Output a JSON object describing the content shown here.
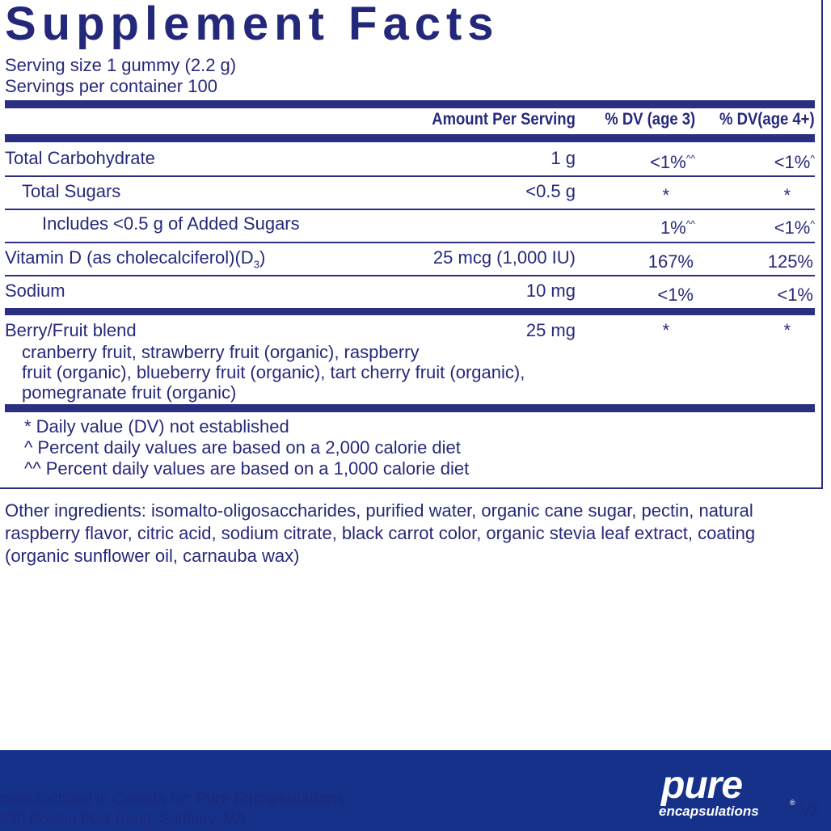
{
  "title": "Supplement Facts",
  "serving_size": "Serving size  1 gummy (2.2 g)",
  "servings_per_container": "Servings per container  100",
  "headers": {
    "amount": "Amount Per Serving",
    "dv3": "% DV (age 3)",
    "dv4": "% DV(age 4+)"
  },
  "rows": [
    {
      "name": "Total Carbohydrate",
      "amount": "1 g",
      "dv3": "<1%",
      "dv3_sup": "^^",
      "dv4": "<1%",
      "dv4_sup": "^"
    },
    {
      "name": "Total Sugars",
      "amount": "<0.5 g",
      "dv3": "*",
      "dv3_sup": "",
      "dv4": "*",
      "dv4_sup": ""
    },
    {
      "name": "Includes <0.5 g of Added Sugars",
      "amount": "",
      "dv3": "1%",
      "dv3_sup": "^^",
      "dv4": "<1%",
      "dv4_sup": "^"
    },
    {
      "name": "Vitamin D (as cholecalciferol)(D",
      "name_sub": "3",
      "name_end": ")",
      "amount": "25 mcg (1,000 IU)",
      "dv3": "167%",
      "dv3_sup": "",
      "dv4": "125%",
      "dv4_sup": ""
    },
    {
      "name": "Sodium",
      "amount": "10 mg",
      "dv3": "<1%",
      "dv3_sup": "",
      "dv4": "<1%",
      "dv4_sup": ""
    }
  ],
  "blend": {
    "name": "Berry/Fruit blend",
    "amount": "25 mg",
    "dv3": "*",
    "dv4": "*",
    "lines": [
      "cranberry fruit, strawberry fruit (organic), raspberry",
      "fruit (organic), blueberry fruit (organic), tart cherry fruit (organic),",
      "pomegranate fruit (organic)"
    ]
  },
  "footnotes": [
    "* Daily value (DV) not established",
    "^ Percent daily values are based on a 2,000 calorie diet",
    "^^ Percent daily values are based on a 1,000 calorie diet"
  ],
  "other_ingredients": [
    "Other ingredients: isomalto-oligosaccharides, purified water, organic cane sugar, pectin, natural",
    "raspberry flavor, citric acid, sodium citrate, black carrot color, organic stevia leaf extract, coating",
    "(organic sunflower oil, carnauba wax)"
  ],
  "footer": {
    "line1_prefix": "manufactured in Canada for: ",
    "line1_brand": "Pure Encapsulations",
    "line2": "490 Boston Post Road, Sudbury, MA",
    "logo_top": "pure",
    "logo_bottom": "encapsulations",
    "logo_reg": "®",
    "version": "V2"
  },
  "colors": {
    "navy": "#2b2f80",
    "footer": "#15318a"
  }
}
